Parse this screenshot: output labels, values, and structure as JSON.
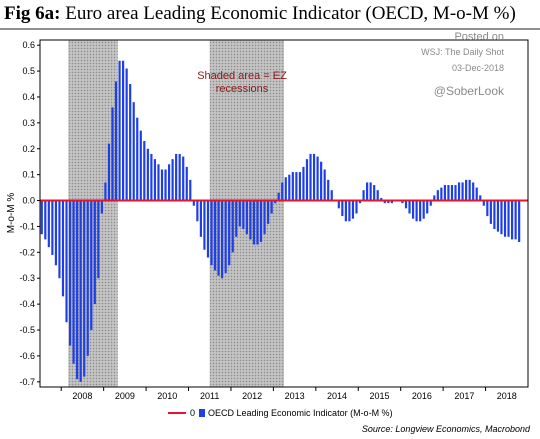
{
  "figure": {
    "label": "Fig 6a:",
    "title": "Euro area Leading Economic Indicator (OECD, M-o-M %)"
  },
  "watermark": {
    "line1": "Posted on",
    "line2": "WSJ: The Daily Shot",
    "line3": "03-Dec-2018",
    "handle": "@SoberLook"
  },
  "annotation": "Shaded area = EZ recessions",
  "source": "Source: Longview Economics, Macrobond",
  "colors": {
    "bars": "#1f3fe6",
    "zero_line": "#e8152a",
    "annotation": "#8b1a1a",
    "shade": "#b8b8b8"
  },
  "chart_data": {
    "type": "bar",
    "ylabel": "M-o-M %",
    "ylim": [
      -0.72,
      0.62
    ],
    "yticks": [
      -0.7,
      -0.6,
      -0.5,
      -0.4,
      -0.3,
      -0.2,
      -0.1,
      0.0,
      0.1,
      0.2,
      0.3,
      0.4,
      0.5,
      0.6
    ],
    "ytick_labels": [
      "-0.7",
      "-0.6",
      "-0.5",
      "-0.4",
      "-0.3",
      "-0.2",
      "-0.1",
      "0.0",
      "0.1",
      "0.2",
      "0.3",
      "0.4",
      "0.5",
      "0.6"
    ],
    "xlim": [
      "2007-07",
      "2018-12"
    ],
    "x_tick_labels": [
      "2008",
      "2009",
      "2010",
      "2011",
      "2012",
      "2013",
      "2014",
      "2015",
      "2016",
      "2017",
      "2018"
    ],
    "recessions": [
      {
        "start": "2008-03",
        "end": "2009-04"
      },
      {
        "start": "2011-07",
        "end": "2013-03"
      }
    ],
    "legend": [
      {
        "symbol": "line",
        "label": "0"
      },
      {
        "symbol": "bar",
        "label": "OECD Leading Economic Indicator (M-o-M %)"
      }
    ],
    "series": [
      {
        "name": "OECD Leading Economic Indicator (M-o-M %)",
        "start": "2007-07",
        "values": [
          -0.13,
          -0.15,
          -0.18,
          -0.21,
          -0.25,
          -0.3,
          -0.37,
          -0.47,
          -0.56,
          -0.63,
          -0.69,
          -0.7,
          -0.68,
          -0.6,
          -0.5,
          -0.4,
          -0.3,
          -0.05,
          0.07,
          0.22,
          0.36,
          0.46,
          0.54,
          0.54,
          0.51,
          0.45,
          0.38,
          0.32,
          0.27,
          0.23,
          0.2,
          0.18,
          0.16,
          0.14,
          0.12,
          0.12,
          0.14,
          0.16,
          0.18,
          0.18,
          0.17,
          0.13,
          0.08,
          -0.02,
          -0.08,
          -0.14,
          -0.19,
          -0.22,
          -0.25,
          -0.27,
          -0.29,
          -0.3,
          -0.28,
          -0.25,
          -0.2,
          -0.14,
          -0.1,
          -0.11,
          -0.13,
          -0.15,
          -0.17,
          -0.17,
          -0.16,
          -0.13,
          -0.09,
          -0.05,
          -0.01,
          0.03,
          0.07,
          0.09,
          0.1,
          0.11,
          0.11,
          0.11,
          0.13,
          0.16,
          0.18,
          0.18,
          0.17,
          0.15,
          0.12,
          0.08,
          0.04,
          0.0,
          -0.03,
          -0.06,
          -0.08,
          -0.08,
          -0.07,
          -0.05,
          -0.01,
          0.04,
          0.07,
          0.07,
          0.06,
          0.04,
          0.01,
          -0.01,
          -0.01,
          -0.01,
          0.0,
          0.0,
          -0.01,
          -0.03,
          -0.05,
          -0.07,
          -0.08,
          -0.08,
          -0.07,
          -0.05,
          -0.02,
          0.02,
          0.04,
          0.05,
          0.06,
          0.06,
          0.06,
          0.06,
          0.07,
          0.07,
          0.08,
          0.08,
          0.07,
          0.05,
          0.02,
          -0.02,
          -0.06,
          -0.09,
          -0.11,
          -0.12,
          -0.13,
          -0.14,
          -0.14,
          -0.15,
          -0.15,
          -0.16
        ]
      }
    ]
  }
}
